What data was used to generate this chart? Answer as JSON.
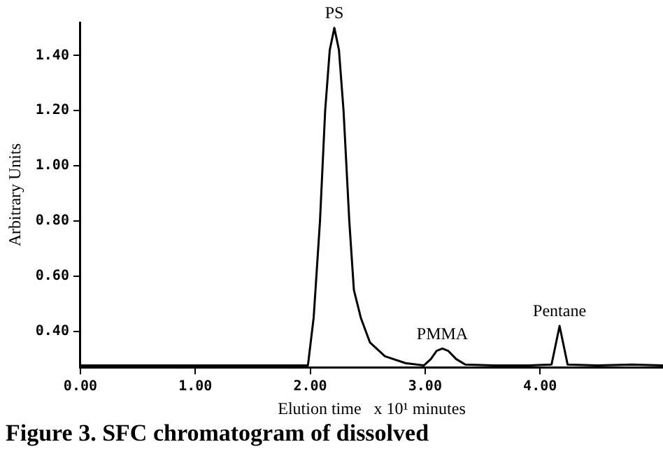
{
  "chart_data": {
    "type": "line",
    "xlabel": "Elution time   x 10¹ minutes",
    "ylabel": "Arbitrary Units",
    "x": [
      0,
      0.5,
      1,
      1.5,
      1.98,
      2.03,
      2.085,
      2.13,
      2.17,
      2.21,
      2.25,
      2.29,
      2.34,
      2.38,
      2.44,
      2.52,
      2.65,
      2.83,
      2.99,
      3.05,
      3.1,
      3.15,
      3.2,
      3.27,
      3.35,
      3.6,
      3.9,
      4.1,
      4.14,
      4.17,
      4.2,
      4.24,
      4.5,
      4.8,
      5.07
    ],
    "series": [
      {
        "color": "#000000",
        "values": [
          0.277,
          0.277,
          0.277,
          0.277,
          0.277,
          0.45,
          0.8,
          1.2,
          1.42,
          1.5,
          1.42,
          1.2,
          0.8,
          0.55,
          0.45,
          0.36,
          0.31,
          0.285,
          0.277,
          0.3,
          0.33,
          0.338,
          0.33,
          0.3,
          0.28,
          0.277,
          0.277,
          0.28,
          0.36,
          0.42,
          0.36,
          0.28,
          0.277,
          0.28,
          0.277
        ]
      }
    ],
    "xlim": [
      0,
      5.07
    ],
    "ylim": [
      0.27,
      1.52
    ],
    "xticks": [
      {
        "value": 0,
        "label": "0.00"
      },
      {
        "value": 1,
        "label": "1.00"
      },
      {
        "value": 2,
        "label": "2.00"
      },
      {
        "value": 3,
        "label": "3.00"
      },
      {
        "value": 4,
        "label": "4.00"
      }
    ],
    "yticks": [
      {
        "value": 0.4,
        "label": "0.40"
      },
      {
        "value": 0.6,
        "label": "0.60"
      },
      {
        "value": 0.8,
        "label": "0.80"
      },
      {
        "value": 1.0,
        "label": "1.00"
      },
      {
        "value": 1.2,
        "label": "1.20"
      },
      {
        "value": 1.4,
        "label": "1.40"
      }
    ],
    "grid": false,
    "legend": false,
    "marker": "none",
    "line_style": "solid",
    "annotations": [
      {
        "text": "PS",
        "x": 2.21,
        "y": 1.5
      },
      {
        "text": "PMMA",
        "x": 3.15,
        "y": 0.338
      },
      {
        "text": "Pentane",
        "x": 4.17,
        "y": 0.42
      },
      "Figure 3.  SFC chromatogram of dissolved"
    ]
  }
}
